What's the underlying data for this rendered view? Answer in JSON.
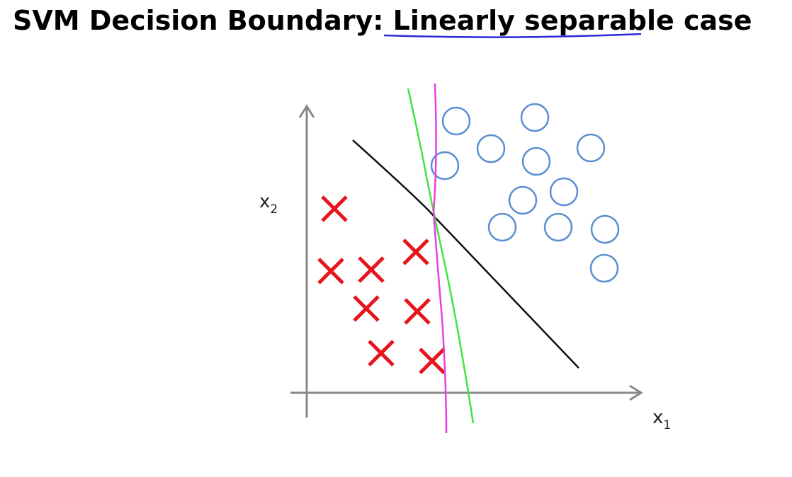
{
  "title": "SVM Decision Boundary: Linearly separable case",
  "axes": {
    "x_label": {
      "base": "x",
      "sub": "1"
    },
    "y_label": {
      "base": "x",
      "sub": "2"
    }
  }
}
